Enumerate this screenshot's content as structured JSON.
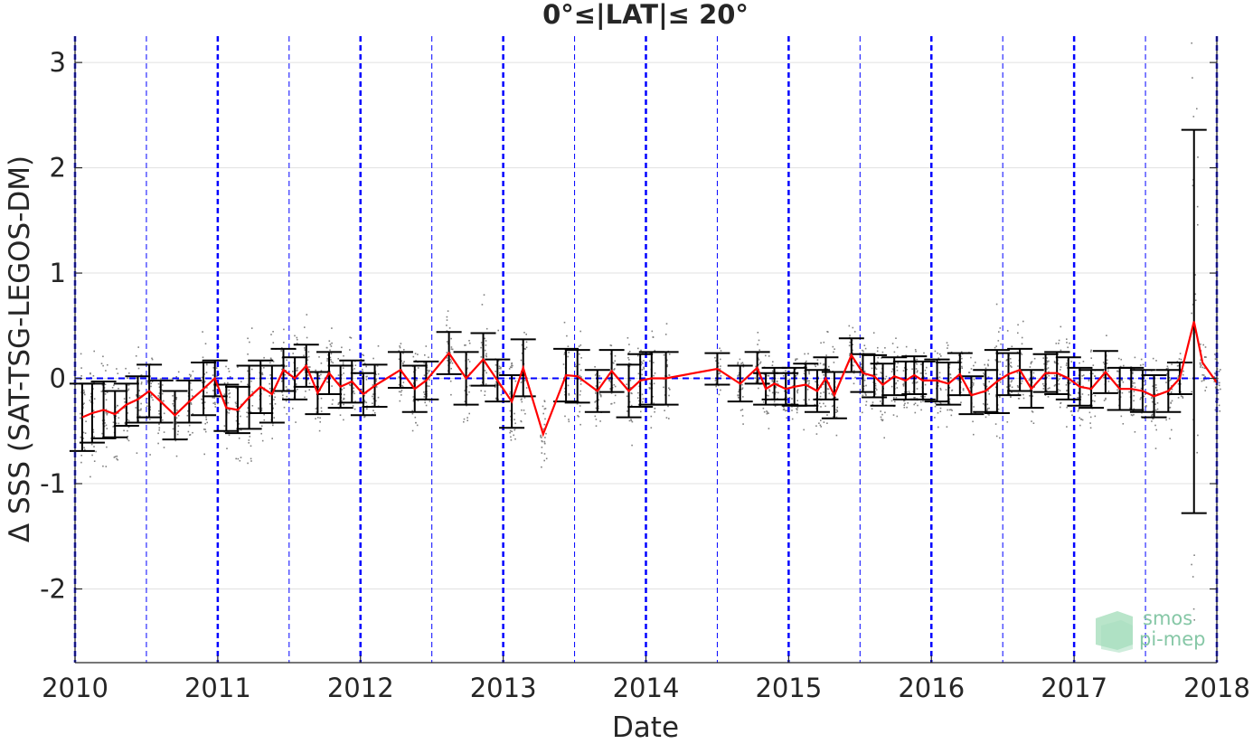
{
  "chart_data": {
    "type": "line",
    "title": "0°≤|LAT|≤ 20°",
    "xlabel": "Date",
    "ylabel": "Δ SSS (SAT-TSG-LEGOS-DM)",
    "xlim": [
      "2010-01-01",
      "2018-01-01"
    ],
    "ylim": [
      -2.7,
      3.25
    ],
    "x_tick_labels": [
      "2010",
      "2011",
      "2012",
      "2013",
      "2014",
      "2015",
      "2016",
      "2017",
      "2018"
    ],
    "y_ticks": [
      -2,
      -1,
      0,
      1,
      2,
      3
    ],
    "y_tick_labels": [
      "-2",
      "-1",
      "0",
      "1",
      "2",
      "3"
    ],
    "grid": "horizontal",
    "zero_line": {
      "value": 0,
      "color": "#0000ff",
      "style": "dashed"
    },
    "year_lines": {
      "color": "#0000ff",
      "style": "dashed"
    },
    "mean_color": "#ff0000",
    "errorbar_color": "#000000",
    "scatter_color": "#808080",
    "series": [
      {
        "x": [
          2010.05,
          2010.12,
          2010.2,
          2010.28,
          2010.36,
          2010.44,
          2010.52,
          2010.6,
          2010.7,
          2010.8,
          2010.9,
          2010.98,
          2011.06,
          2011.14,
          2011.22,
          2011.3,
          2011.38,
          2011.46,
          2011.54,
          2011.62,
          2011.7,
          2011.78,
          2011.86,
          2011.94,
          2012.02,
          2012.1,
          2012.28,
          2012.38,
          2012.46,
          2012.62,
          2012.74,
          2012.86,
          2012.96,
          2013.06,
          2013.14,
          2013.28,
          2013.44,
          2013.52,
          2013.66,
          2013.76,
          2013.88,
          2013.96,
          2014.04,
          2014.14,
          2014.5,
          2014.66,
          2014.78,
          2014.84,
          2014.9,
          2014.98,
          2015.04,
          2015.12,
          2015.2,
          2015.26,
          2015.32,
          2015.44,
          2015.52,
          2015.6,
          2015.66,
          2015.74,
          2015.82,
          2015.88,
          2015.94,
          2016.04,
          2016.12,
          2016.2,
          2016.28,
          2016.38,
          2016.46,
          2016.54,
          2016.62,
          2016.7,
          2016.8,
          2016.88,
          2016.96,
          2017.04,
          2017.12,
          2017.22,
          2017.32,
          2017.4,
          2017.48,
          2017.56,
          2017.66,
          2017.74,
          2017.84,
          2017.9,
          2018.0
        ],
        "y": [
          -0.37,
          -0.33,
          -0.3,
          -0.34,
          -0.25,
          -0.2,
          -0.12,
          -0.22,
          -0.35,
          -0.22,
          -0.1,
          0.0,
          -0.28,
          -0.3,
          -0.18,
          -0.08,
          -0.15,
          0.08,
          0.0,
          0.12,
          -0.14,
          0.05,
          -0.08,
          -0.03,
          -0.15,
          -0.07,
          0.08,
          -0.1,
          -0.02,
          0.24,
          0.0,
          0.18,
          -0.02,
          -0.22,
          0.1,
          -0.53,
          0.03,
          0.02,
          -0.12,
          0.07,
          -0.12,
          -0.02,
          0.0,
          0.0,
          0.09,
          -0.05,
          0.1,
          -0.1,
          -0.05,
          -0.1,
          -0.08,
          -0.06,
          -0.12,
          0.0,
          -0.16,
          0.22,
          0.05,
          0.02,
          -0.06,
          0.02,
          -0.02,
          0.03,
          -0.02,
          -0.02,
          -0.05,
          0.04,
          -0.16,
          -0.12,
          -0.03,
          0.04,
          0.08,
          -0.1,
          0.05,
          0.05,
          0.0,
          -0.08,
          -0.1,
          0.06,
          -0.1,
          -0.1,
          -0.12,
          -0.17,
          -0.12,
          0.0,
          0.54,
          0.15,
          -0.04
        ],
        "err": [
          0.32,
          0.28,
          0.27,
          0.22,
          0.2,
          0.22,
          0.25,
          0.2,
          0.23,
          0.2,
          0.25,
          0.17,
          0.22,
          0.22,
          0.3,
          0.25,
          0.27,
          0.2,
          0.2,
          0.2,
          0.2,
          0.2,
          0.2,
          0.2,
          0.2,
          0.2,
          0.17,
          0.22,
          0.18,
          0.2,
          0.25,
          0.25,
          0.2,
          0.25,
          0.27,
          0.0,
          0.25,
          0.25,
          0.2,
          0.2,
          0.25,
          0.25,
          0.25,
          0.25,
          0.15,
          0.17,
          0.15,
          0.15,
          0.15,
          0.15,
          0.18,
          0.2,
          0.2,
          0.2,
          0.22,
          0.16,
          0.18,
          0.2,
          0.2,
          0.18,
          0.18,
          0.18,
          0.18,
          0.2,
          0.2,
          0.2,
          0.18,
          0.2,
          0.3,
          0.2,
          0.2,
          0.18,
          0.18,
          0.2,
          0.2,
          0.18,
          0.18,
          0.2,
          0.2,
          0.2,
          0.2,
          0.2,
          0.2,
          0.15,
          1.82,
          0.0,
          0.0
        ]
      }
    ]
  },
  "watermark": {
    "line1": "smos",
    "line2": "pi-mep"
  }
}
